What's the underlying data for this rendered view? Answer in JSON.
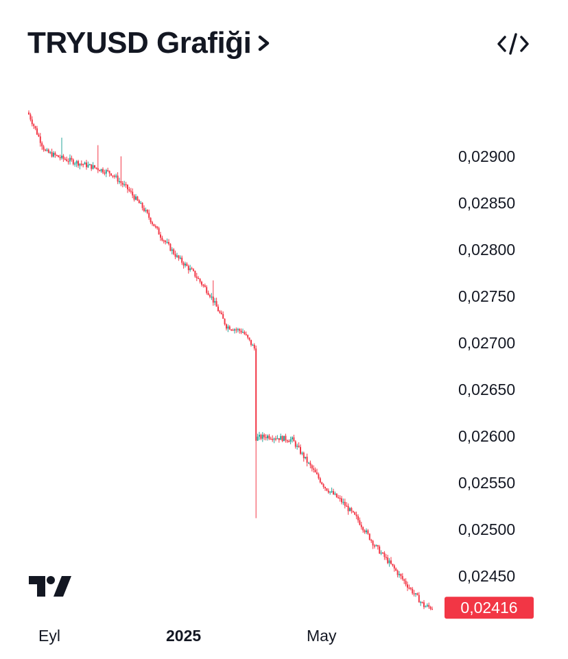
{
  "header": {
    "title": "TRYUSD Grafiği",
    "arrow_icon": "chevron-right-icon",
    "embed_icon": "code-embed-icon"
  },
  "colors": {
    "up": "#26a69a",
    "down": "#f23645",
    "text": "#131722",
    "last_price_bg": "#f23645"
  },
  "chart_data": {
    "type": "candlestick",
    "symbol": "TRYUSD",
    "y_ticks": [
      "0,02900",
      "0,02850",
      "0,02800",
      "0,02750",
      "0,02700",
      "0,02650",
      "0,02600",
      "0,02550",
      "0,02500",
      "0,02450"
    ],
    "x_ticks": [
      {
        "label": "Eyl",
        "bold": false
      },
      {
        "label": "2025",
        "bold": true
      },
      {
        "label": "May",
        "bold": false
      }
    ],
    "last_price": 0.02416,
    "last_price_label": "0,02416",
    "ylim": [
      0.024,
      0.0295
    ],
    "trend_points": [
      {
        "i": 0,
        "v": 0.02945
      },
      {
        "i": 5,
        "v": 0.02925
      },
      {
        "i": 10,
        "v": 0.02905
      },
      {
        "i": 20,
        "v": 0.02898
      },
      {
        "i": 30,
        "v": 0.02893
      },
      {
        "i": 40,
        "v": 0.02888
      },
      {
        "i": 50,
        "v": 0.02882
      },
      {
        "i": 60,
        "v": 0.02865
      },
      {
        "i": 70,
        "v": 0.02843
      },
      {
        "i": 80,
        "v": 0.02815
      },
      {
        "i": 90,
        "v": 0.02792
      },
      {
        "i": 100,
        "v": 0.02775
      },
      {
        "i": 110,
        "v": 0.02752
      },
      {
        "i": 120,
        "v": 0.02718
      },
      {
        "i": 130,
        "v": 0.02712
      },
      {
        "i": 137,
        "v": 0.02694
      },
      {
        "i": 138,
        "v": 0.02598
      },
      {
        "i": 145,
        "v": 0.026
      },
      {
        "i": 160,
        "v": 0.02596
      },
      {
        "i": 170,
        "v": 0.0257
      },
      {
        "i": 180,
        "v": 0.02545
      },
      {
        "i": 190,
        "v": 0.0253
      },
      {
        "i": 200,
        "v": 0.0251
      },
      {
        "i": 210,
        "v": 0.02483
      },
      {
        "i": 220,
        "v": 0.02462
      },
      {
        "i": 230,
        "v": 0.0244
      },
      {
        "i": 240,
        "v": 0.02418
      },
      {
        "i": 245,
        "v": 0.02416
      }
    ],
    "spikes": [
      {
        "i": 20,
        "high": 0.0292
      },
      {
        "i": 42,
        "high": 0.02912
      },
      {
        "i": 56,
        "high": 0.029
      },
      {
        "i": 112,
        "high": 0.02767
      },
      {
        "i": 138,
        "low": 0.02512,
        "high": 0.0269
      },
      {
        "i": 170,
        "high": 0.02568
      }
    ]
  }
}
